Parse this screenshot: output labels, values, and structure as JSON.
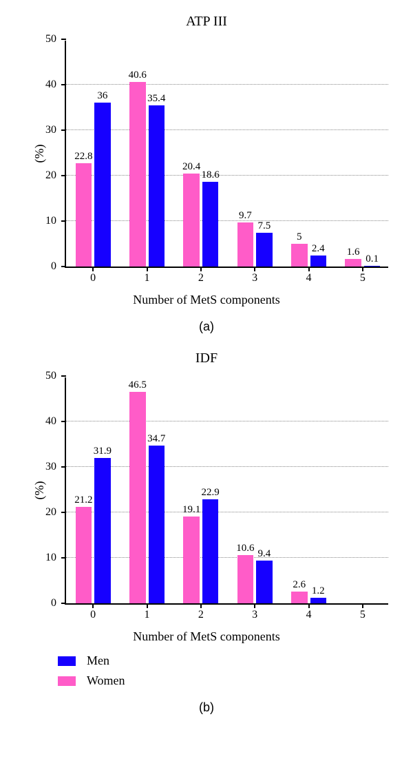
{
  "colors": {
    "men": "#1600ff",
    "women": "#ff5cc8",
    "grid": "#888888",
    "axis": "#000000",
    "background": "#ffffff"
  },
  "barStyle": {
    "groupGap": 4,
    "barWidthFrac": 0.3
  },
  "chartA": {
    "title": "ATP III",
    "type": "bar",
    "ylabel": "(%)",
    "xlabel": "Number of MetS components",
    "ylim": [
      0,
      50
    ],
    "ytick_step": 10,
    "categories": [
      "0",
      "1",
      "2",
      "3",
      "4",
      "5"
    ],
    "series": [
      {
        "name": "Women",
        "colorKey": "women",
        "values": [
          22.8,
          40.6,
          20.4,
          9.7,
          5,
          1.6
        ]
      },
      {
        "name": "Men",
        "colorKey": "men",
        "values": [
          36,
          35.4,
          18.6,
          7.5,
          2.4,
          0.1
        ]
      }
    ],
    "subcaption": "(a)"
  },
  "chartB": {
    "title": "IDF",
    "type": "bar",
    "ylabel": "(%)",
    "xlabel": "Number of MetS components",
    "ylim": [
      0,
      50
    ],
    "ytick_step": 10,
    "categories": [
      "0",
      "1",
      "2",
      "3",
      "4",
      "5"
    ],
    "series": [
      {
        "name": "Women",
        "colorKey": "women",
        "values": [
          21.2,
          46.5,
          19.1,
          10.6,
          2.6,
          null
        ]
      },
      {
        "name": "Men",
        "colorKey": "men",
        "values": [
          31.9,
          34.7,
          22.9,
          9.4,
          1.2,
          null
        ]
      }
    ],
    "subcaption": "(b)"
  },
  "legend": {
    "items": [
      {
        "label": "Men",
        "colorKey": "men"
      },
      {
        "label": "Women",
        "colorKey": "women"
      }
    ]
  },
  "layout": {
    "plotWidthPx": 470,
    "plotHeightPx": 330,
    "plotLeftPx": 78,
    "plotTopPx": 8
  }
}
